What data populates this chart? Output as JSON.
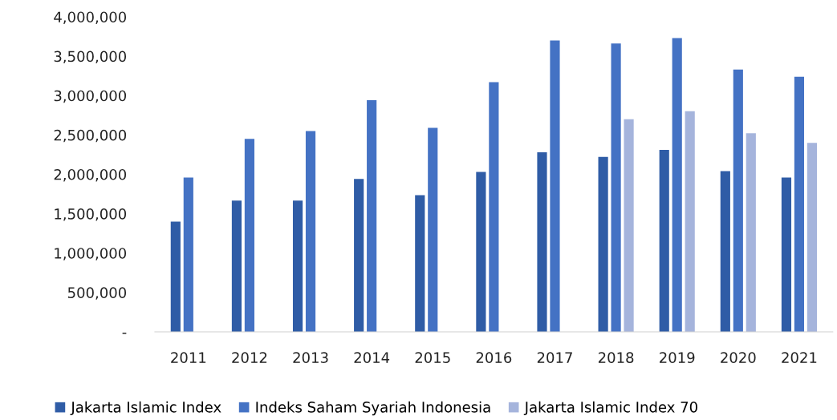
{
  "chart_data": {
    "type": "bar",
    "categories": [
      "2011",
      "2012",
      "2013",
      "2014",
      "2015",
      "2016",
      "2017",
      "2018",
      "2019",
      "2020",
      "2021"
    ],
    "series": [
      {
        "name": "Jakarta Islamic Index",
        "color": "#2f5ca6",
        "values": [
          1400000,
          1665000,
          1665000,
          1940000,
          1735000,
          2030000,
          2280000,
          2220000,
          2310000,
          2040000,
          1960000
        ]
      },
      {
        "name": "Indeks Saham Syariah Indonesia",
        "color": "#4472c4",
        "values": [
          1960000,
          2450000,
          2550000,
          2940000,
          2590000,
          3170000,
          3700000,
          3660000,
          3730000,
          3330000,
          3240000
        ]
      },
      {
        "name": "Jakarta Islamic Index 70",
        "color": "#a5b4dc",
        "values": [
          null,
          null,
          null,
          null,
          null,
          null,
          null,
          2700000,
          2800000,
          2520000,
          2400000
        ]
      }
    ],
    "ylim": [
      0,
      4000000
    ],
    "yticks": [
      {
        "value": 0,
        "label": "-"
      },
      {
        "value": 500000,
        "label": "500,000"
      },
      {
        "value": 1000000,
        "label": "1,000,000"
      },
      {
        "value": 1500000,
        "label": "1,500,000"
      },
      {
        "value": 2000000,
        "label": "2,000,000"
      },
      {
        "value": 2500000,
        "label": "2,500,000"
      },
      {
        "value": 3000000,
        "label": "3,000,000"
      },
      {
        "value": 3500000,
        "label": "3,500,000"
      },
      {
        "value": 4000000,
        "label": "4,000,000"
      }
    ],
    "grid": false,
    "legend": "bottom"
  }
}
